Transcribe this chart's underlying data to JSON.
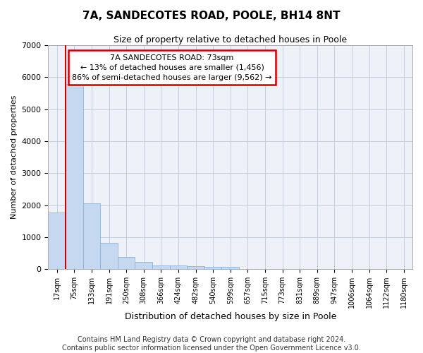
{
  "title": "7A, SANDECOTES ROAD, POOLE, BH14 8NT",
  "subtitle": "Size of property relative to detached houses in Poole",
  "xlabel": "Distribution of detached houses by size in Poole",
  "ylabel": "Number of detached properties",
  "footer_line1": "Contains HM Land Registry data © Crown copyright and database right 2024.",
  "footer_line2": "Contains public sector information licensed under the Open Government Licence v3.0.",
  "annotation_line1": "7A SANDECOTES ROAD: 73sqm",
  "annotation_line2": "← 13% of detached houses are smaller (1,456)",
  "annotation_line3": "86% of semi-detached houses are larger (9,562) →",
  "bar_values": [
    1780,
    5780,
    2060,
    820,
    370,
    230,
    120,
    110,
    95,
    75,
    65,
    0,
    0,
    0,
    0,
    0,
    0,
    0,
    0,
    0,
    0
  ],
  "categories": [
    "17sqm",
    "75sqm",
    "133sqm",
    "191sqm",
    "250sqm",
    "308sqm",
    "366sqm",
    "424sqm",
    "482sqm",
    "540sqm",
    "599sqm",
    "657sqm",
    "715sqm",
    "773sqm",
    "831sqm",
    "889sqm",
    "947sqm",
    "1006sqm",
    "1064sqm",
    "1122sqm",
    "1180sqm"
  ],
  "bar_color": "#c5d8f0",
  "bar_edge_color": "#7aadd4",
  "vline_x": 0.5,
  "vline_color": "#cc0000",
  "annotation_box_color": "#cc0000",
  "bg_color": "#eef2f8",
  "grid_color": "#c0cfe0",
  "ylim": [
    0,
    7000
  ],
  "yticks": [
    0,
    1000,
    2000,
    3000,
    4000,
    5000,
    6000,
    7000
  ],
  "title_fontsize": 11,
  "subtitle_fontsize": 9,
  "xlabel_fontsize": 9,
  "ylabel_fontsize": 8,
  "annot_fontsize": 8,
  "footer_fontsize": 7
}
